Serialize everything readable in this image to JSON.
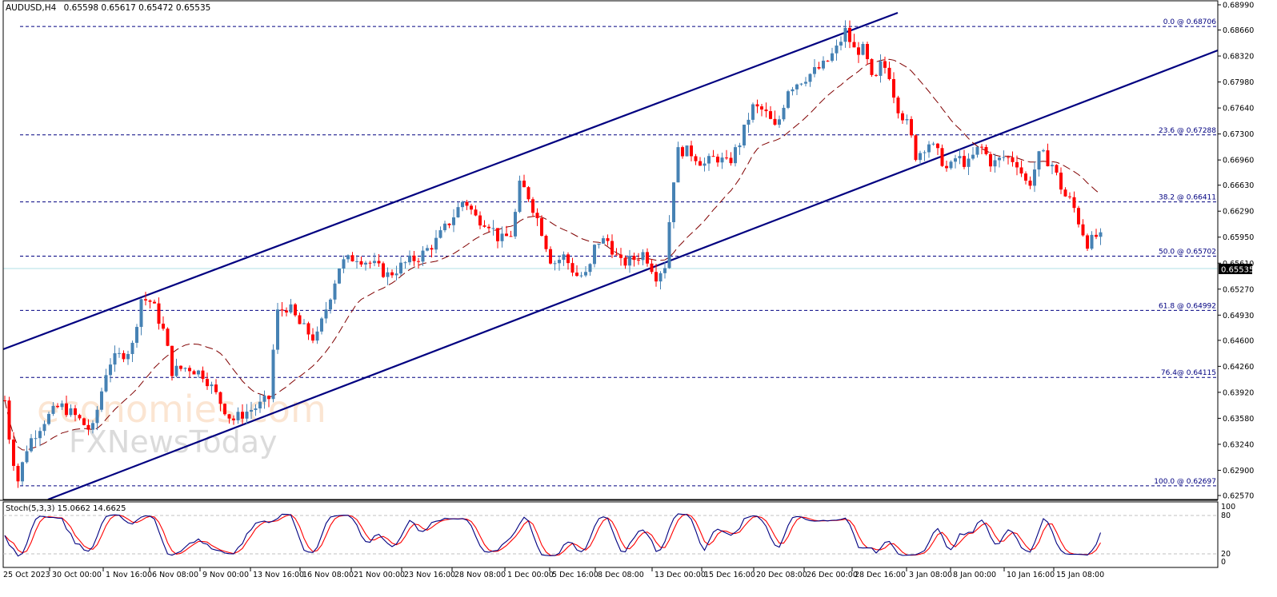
{
  "header": {
    "symbol": "AUDUSD,H4",
    "ohlc": "0.65598 0.65617 0.65472 0.65535"
  },
  "price_axis": {
    "ticks": [
      "0.68990",
      "0.68660",
      "0.68320",
      "0.67980",
      "0.67640",
      "0.67300",
      "0.66960",
      "0.66630",
      "0.66290",
      "0.65950",
      "0.65610",
      "0.65270",
      "0.64930",
      "0.64600",
      "0.64260",
      "0.63920",
      "0.63580",
      "0.63240",
      "0.62900",
      "0.62570"
    ],
    "current_price": "0.65535"
  },
  "fibonacci": {
    "levels": [
      {
        "label": "0.0 @ 0.68706",
        "price": 0.68706
      },
      {
        "label": "23.6 @ 0.67288",
        "price": 0.67288
      },
      {
        "label": "38.2 @ 0.66411",
        "price": 0.66411
      },
      {
        "label": "50.0 @ 0.65702",
        "price": 0.65702
      },
      {
        "label": "61.8 @ 0.64992",
        "price": 0.64992
      },
      {
        "label": "76.4@ 0.64115",
        "price": 0.64115
      },
      {
        "label": "100.0 @ 0.62697",
        "price": 0.62697
      }
    ]
  },
  "stochastic": {
    "label": "Stoch(5,3,3) 15.0662 14.6625",
    "axis_ticks": [
      "100",
      "80",
      "20",
      "0"
    ]
  },
  "time_axis": {
    "labels": [
      "25 Oct 2023",
      "30 Oct 00:00",
      "1 Nov 16:00",
      "6 Nov 08:00",
      "9 Nov 00:00",
      "13 Nov 16:00",
      "16 Nov 08:00",
      "21 Nov 00:00",
      "23 Nov 16:00",
      "28 Nov 08:00",
      "1 Dec 00:00",
      "5 Dec 16:00",
      "8 Dec 08:00",
      "13 Dec 00:00",
      "15 Dec 16:00",
      "20 Dec 08:00",
      "26 Dec 00:00",
      "28 Dec 16:00",
      "3 Jan 08:00",
      "8 Jan 00:00",
      "10 Jan 16:00",
      "15 Jan 08:00"
    ]
  },
  "watermark": {
    "line1": "economies.com",
    "line2": "FXNewsToday"
  },
  "colors": {
    "bull": "#4682B4",
    "bear": "#FF0000",
    "channel": "#000080",
    "fib": "#000080",
    "ma": "#800000",
    "stoch_main": "#000080",
    "stoch_signal": "#FF0000",
    "bid_line": "#B0E0E6"
  },
  "chart_data": {
    "type": "candlestick",
    "title": "AUDUSD,H4",
    "instrument": "AUDUSD",
    "timeframe": "H4",
    "last_bar": {
      "open": 0.65598,
      "high": 0.65617,
      "low": 0.65472,
      "close": 0.65535
    },
    "ylim": [
      0.6257,
      0.6899
    ],
    "x_tick_labels": [
      "25 Oct 2023",
      "30 Oct 00:00",
      "1 Nov 16:00",
      "6 Nov 08:00",
      "9 Nov 00:00",
      "13 Nov 16:00",
      "16 Nov 08:00",
      "21 Nov 00:00",
      "23 Nov 16:00",
      "28 Nov 08:00",
      "1 Dec 00:00",
      "5 Dec 16:00",
      "8 Dec 08:00",
      "13 Dec 00:00",
      "15 Dec 16:00",
      "20 Dec 08:00",
      "26 Dec 00:00",
      "28 Dec 16:00",
      "3 Jan 08:00",
      "8 Jan 00:00",
      "10 Jan 16:00",
      "15 Jan 08:00"
    ],
    "approx_close_path": [
      {
        "t": "25 Oct 2023",
        "close": 0.6345
      },
      {
        "t": "26 Oct",
        "close": 0.6275
      },
      {
        "t": "30 Oct 00:00",
        "close": 0.6365
      },
      {
        "t": "1 Nov 16:00",
        "close": 0.645
      },
      {
        "t": "3 Nov",
        "close": 0.6515
      },
      {
        "t": "6 Nov 08:00",
        "close": 0.643
      },
      {
        "t": "9 Nov 00:00",
        "close": 0.6375
      },
      {
        "t": "13 Nov 16:00",
        "close": 0.6385
      },
      {
        "t": "14 Nov",
        "close": 0.6505
      },
      {
        "t": "16 Nov 08:00",
        "close": 0.646
      },
      {
        "t": "21 Nov 00:00",
        "close": 0.656
      },
      {
        "t": "23 Nov 16:00",
        "close": 0.657
      },
      {
        "t": "28 Nov 08:00",
        "close": 0.663
      },
      {
        "t": "29 Nov",
        "close": 0.6665
      },
      {
        "t": "1 Dec 00:00",
        "close": 0.664
      },
      {
        "t": "4 Dec",
        "close": 0.659
      },
      {
        "t": "5 Dec 16:00",
        "close": 0.6545
      },
      {
        "t": "8 Dec 08:00",
        "close": 0.657
      },
      {
        "t": "13 Dec 00:00",
        "close": 0.657
      },
      {
        "t": "14 Dec",
        "close": 0.6715
      },
      {
        "t": "15 Dec 16:00",
        "close": 0.67
      },
      {
        "t": "20 Dec 08:00",
        "close": 0.6765
      },
      {
        "t": "26 Dec 00:00",
        "close": 0.682
      },
      {
        "t": "28 Dec 16:00",
        "close": 0.686
      },
      {
        "t": "2 Jan",
        "close": 0.68
      },
      {
        "t": "3 Jan 08:00",
        "close": 0.6715
      },
      {
        "t": "8 Jan 00:00",
        "close": 0.6705
      },
      {
        "t": "10 Jan 16:00",
        "close": 0.67
      },
      {
        "t": "12 Jan",
        "close": 0.669
      },
      {
        "t": "15 Jan 08:00",
        "close": 0.664
      },
      {
        "t": "17 Jan",
        "close": 0.65535
      }
    ],
    "overlays": [
      {
        "type": "ascending_channel",
        "upper": [
          [
            0,
            0.645
          ],
          [
            1122,
            0.6893
          ]
        ],
        "lower": [
          [
            60,
            0.6257
          ],
          [
            1522,
            0.6837
          ]
        ]
      },
      {
        "type": "moving_average",
        "style": "dashed",
        "color": "#800000"
      },
      {
        "type": "fibonacci_retracement",
        "levels": {
          "0.0": 0.68706,
          "23.6": 0.67288,
          "38.2": 0.66411,
          "50.0": 0.65702,
          "61.8": 0.64992,
          "76.4": 0.64115,
          "100.0": 0.62697
        }
      }
    ],
    "indicator": {
      "name": "Stochastic",
      "params": "5,3,3",
      "main": 15.0662,
      "signal": 14.6625,
      "levels": [
        20,
        80
      ],
      "range": [
        0,
        100
      ]
    },
    "grid": false,
    "legend": "none"
  }
}
